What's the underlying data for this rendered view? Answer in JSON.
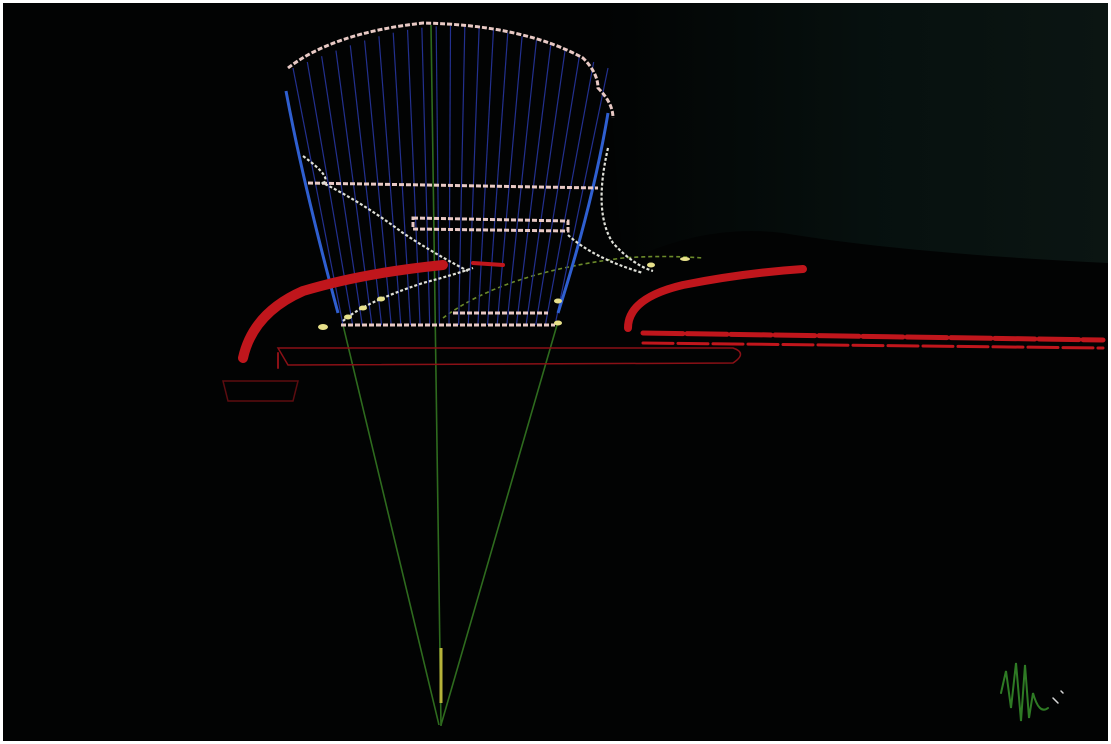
{
  "artwork": {
    "description_colors": {
      "background": "#020303",
      "dome_outline": "#e8c9c4",
      "rib_lines": "#2a3aa8",
      "side_rails": "#2f5fd0",
      "axis_lines": "#2e6b1e",
      "red_ramps": "#c0161c",
      "yellow_points": "#e7e08a"
    },
    "signature_icon": "signature-mark"
  }
}
